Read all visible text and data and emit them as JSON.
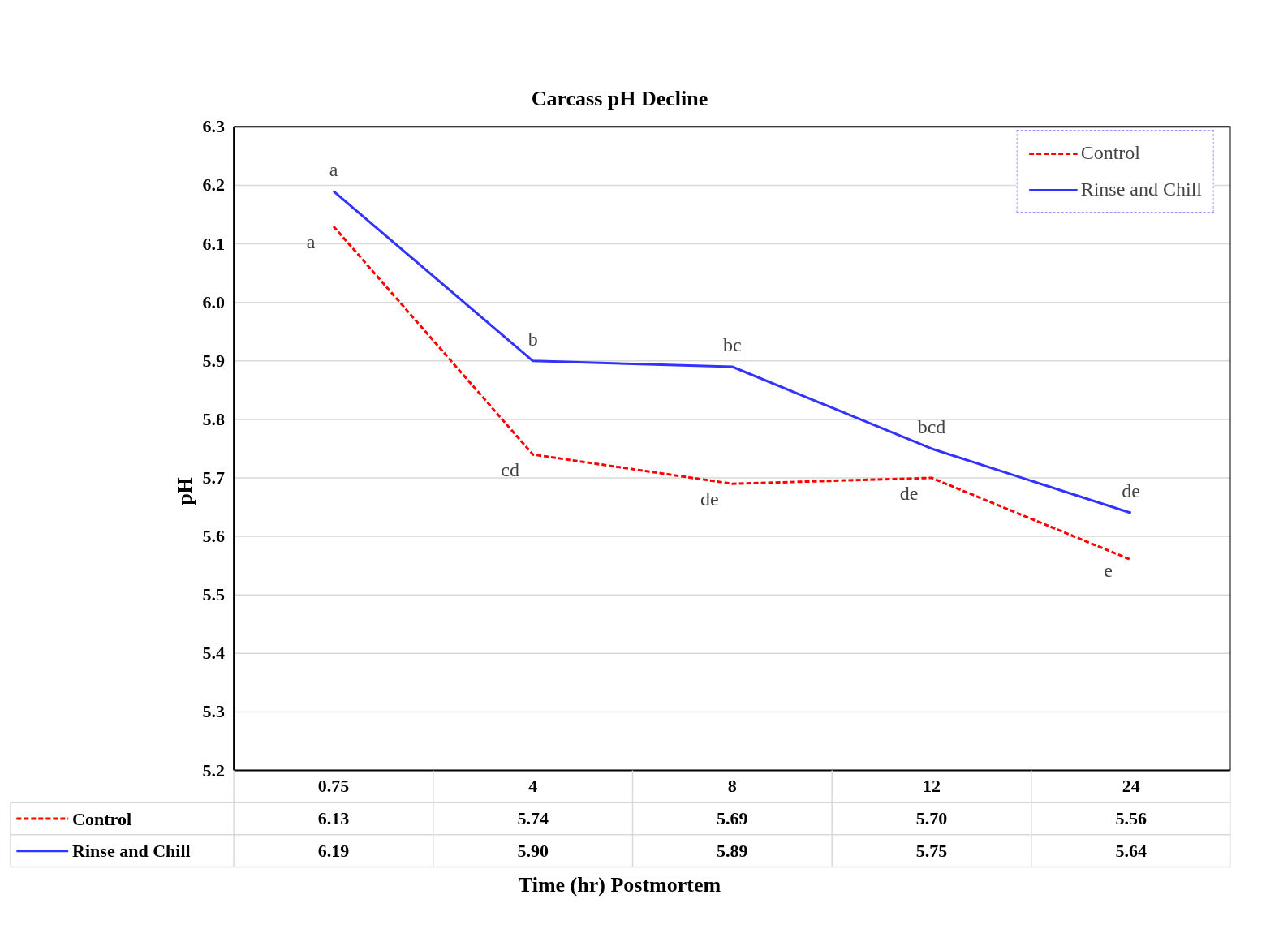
{
  "chart_data": {
    "type": "line",
    "title": "Carcass pH Decline",
    "xlabel": "Time (hr) Postmortem",
    "ylabel": "pH",
    "categories": [
      "0.75",
      "4",
      "8",
      "12",
      "24"
    ],
    "series": [
      {
        "name": "Control",
        "color": "#ff0000",
        "line_style": "dashed",
        "values": [
          6.13,
          5.74,
          5.69,
          5.7,
          5.56
        ],
        "value_labels": [
          "6.13",
          "5.74",
          "5.69",
          "5.70",
          "5.56"
        ]
      },
      {
        "name": "Rinse and Chill",
        "color": "#3333ff",
        "line_style": "solid",
        "values": [
          6.19,
          5.9,
          5.89,
          5.75,
          5.64
        ],
        "value_labels": [
          "6.19",
          "5.90",
          "5.89",
          "5.75",
          "5.64"
        ]
      }
    ],
    "ylim": [
      5.2,
      6.3
    ],
    "yticks": [
      5.2,
      5.3,
      5.4,
      5.5,
      5.6,
      5.7,
      5.8,
      5.9,
      {
        "value": 6.0,
        "label": "6.0"
      },
      6.1,
      6.2,
      6.3
    ],
    "grid": "y",
    "legend": "top right",
    "annotations": [
      {
        "text": "a",
        "x": "0.75",
        "y": 6.13
      },
      {
        "text": "cd",
        "x": "4",
        "y": 5.74
      },
      {
        "text": "de",
        "x": "8",
        "y": 5.69
      },
      {
        "text": "de",
        "x": "12",
        "y": 5.7
      },
      {
        "text": "e",
        "x": "24",
        "y": 5.56
      },
      {
        "text": "a",
        "x": "0.75",
        "y": 6.19
      },
      {
        "text": "b",
        "x": "4",
        "y": 5.9
      },
      {
        "text": "bc",
        "x": "8",
        "y": 5.89
      },
      {
        "text": "bcd",
        "x": "12",
        "y": 5.75
      },
      {
        "text": "de",
        "x": "24",
        "y": 5.64
      }
    ]
  }
}
